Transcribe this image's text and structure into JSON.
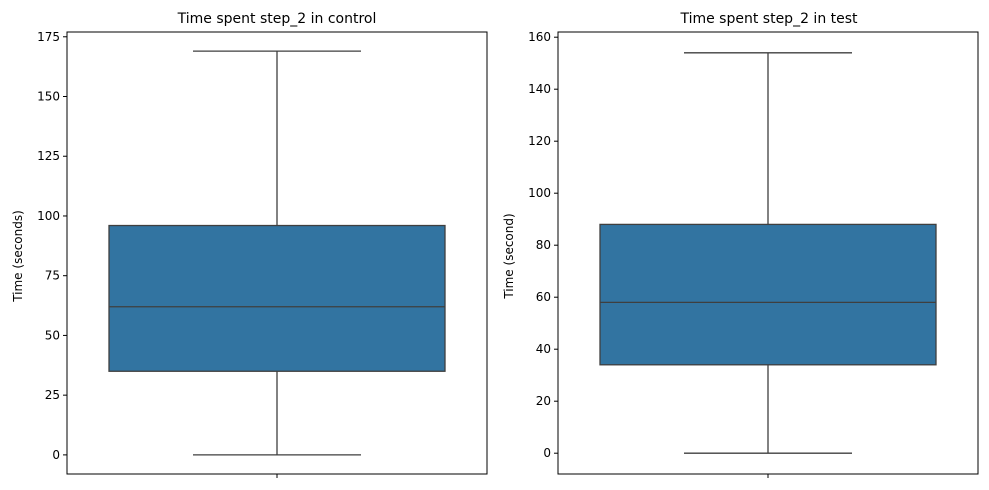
{
  "chart_data": [
    {
      "type": "box",
      "title": "Time spent step_2 in control",
      "ylabel": "Time (seconds)",
      "xlabel": "",
      "ylim": [
        -8,
        177
      ],
      "yticks": [
        0,
        25,
        50,
        75,
        100,
        125,
        150,
        175
      ],
      "box": {
        "min": 0,
        "q1": 35,
        "median": 62,
        "q3": 96,
        "max": 169
      },
      "box_color": "#3274a1"
    },
    {
      "type": "box",
      "title": "Time spent step_2 in test",
      "ylabel": "Time (second)",
      "xlabel": "",
      "ylim": [
        -8,
        162
      ],
      "yticks": [
        0,
        20,
        40,
        60,
        80,
        100,
        120,
        140,
        160
      ],
      "box": {
        "min": 0,
        "q1": 34,
        "median": 58,
        "q3": 88,
        "max": 154
      },
      "box_color": "#3274a1"
    }
  ]
}
